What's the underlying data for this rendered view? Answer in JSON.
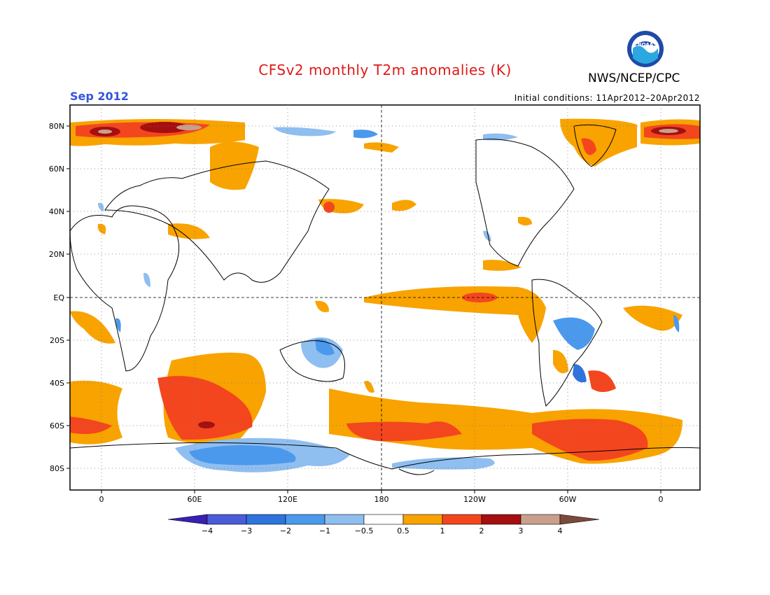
{
  "header": {
    "title": "CFSv2 monthly T2m anomalies (K)",
    "month": "Sep 2012",
    "org": "NWS/NCEP/CPC",
    "initial_conditions": "Initial conditions: 11Apr2012–20Apr2012",
    "logo_text": "NOAA"
  },
  "map": {
    "lat_labels": [
      "80N",
      "60N",
      "40N",
      "20N",
      "EQ",
      "20S",
      "40S",
      "60S",
      "80S"
    ],
    "lon_labels": [
      "0",
      "60E",
      "120E",
      "180",
      "120W",
      "60W",
      "0"
    ]
  },
  "legend": {
    "labels": [
      "−4",
      "−3",
      "−2",
      "−1",
      "−0.5",
      "0.5",
      "1",
      "2",
      "3",
      "4"
    ],
    "colors": [
      "#3a1fb4",
      "#4a5cd8",
      "#2f73dc",
      "#4b99ec",
      "#8fbef0",
      "#ffffff",
      "#f8a300",
      "#f4461e",
      "#a50f0f",
      "#c9a08c",
      "#7a4a3a"
    ]
  },
  "colors": {
    "warm_05": "#f8a300",
    "warm_1": "#f4461e",
    "warm_2": "#a50f0f",
    "warm_3": "#c9a08c",
    "cool_05": "#8fbef0",
    "cool_1": "#4b99ec",
    "cool_2": "#2f73dc"
  }
}
